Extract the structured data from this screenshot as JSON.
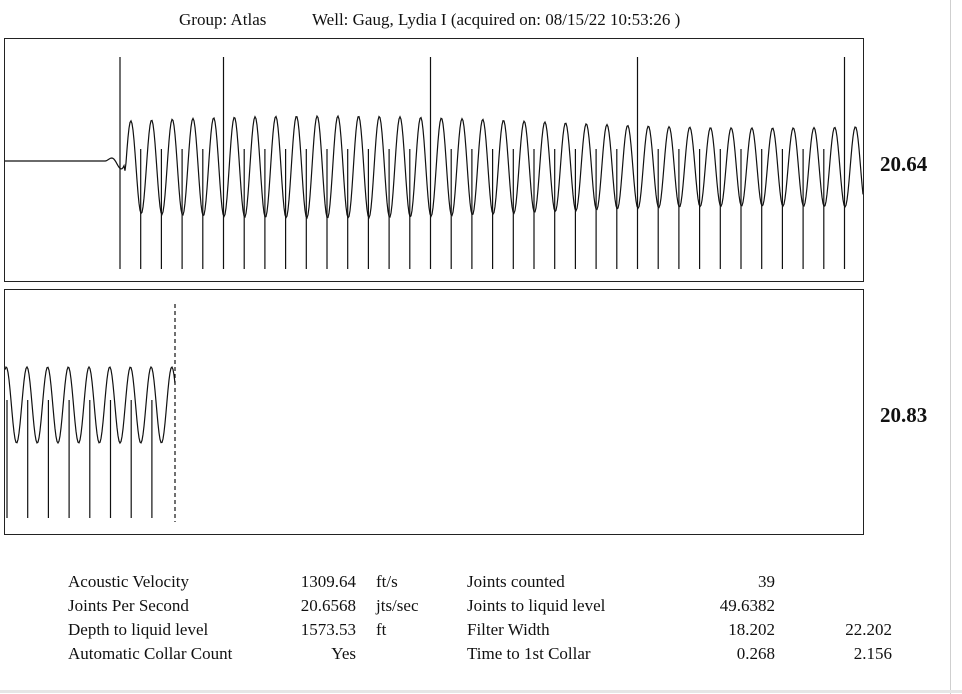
{
  "header": {
    "group": "Group: Atlas",
    "well": "Well: Gaug, Lydia I (acquired on: 08/15/22 10:53:26 )"
  },
  "side_values": {
    "top": "20.64",
    "bottom": "20.83"
  },
  "stats": {
    "labels": [
      "Acoustic Velocity",
      "Joints Per Second",
      "Depth to liquid level",
      "Automatic Collar Count"
    ],
    "values": [
      "1309.64",
      "20.6568",
      "1573.53",
      "Yes"
    ],
    "units": [
      "ft/s",
      "jts/sec",
      "ft",
      ""
    ],
    "labels2": [
      "Joints counted",
      "Joints to liquid level",
      "Filter Width",
      "Time to 1st Collar"
    ],
    "values2": [
      "39",
      "49.6382",
      "18.202",
      "0.268"
    ],
    "values3": [
      "",
      "",
      "22.202",
      "2.156"
    ]
  },
  "chart_data": [
    {
      "type": "line",
      "title": "",
      "description_values": {
        "signal_start_fraction": 0.12,
        "collar_count": 37,
        "joint_frequency_label": "20.64",
        "highlighted_collars": [
          5,
          15,
          25,
          35
        ]
      },
      "series": [
        {
          "values": []
        }
      ]
    },
    {
      "type": "line",
      "title": "",
      "description_values": {
        "collar_count": 9,
        "joint_frequency_label": "20.83",
        "liquid_level_marker": true
      },
      "series": [
        {
          "values": []
        }
      ]
    }
  ]
}
